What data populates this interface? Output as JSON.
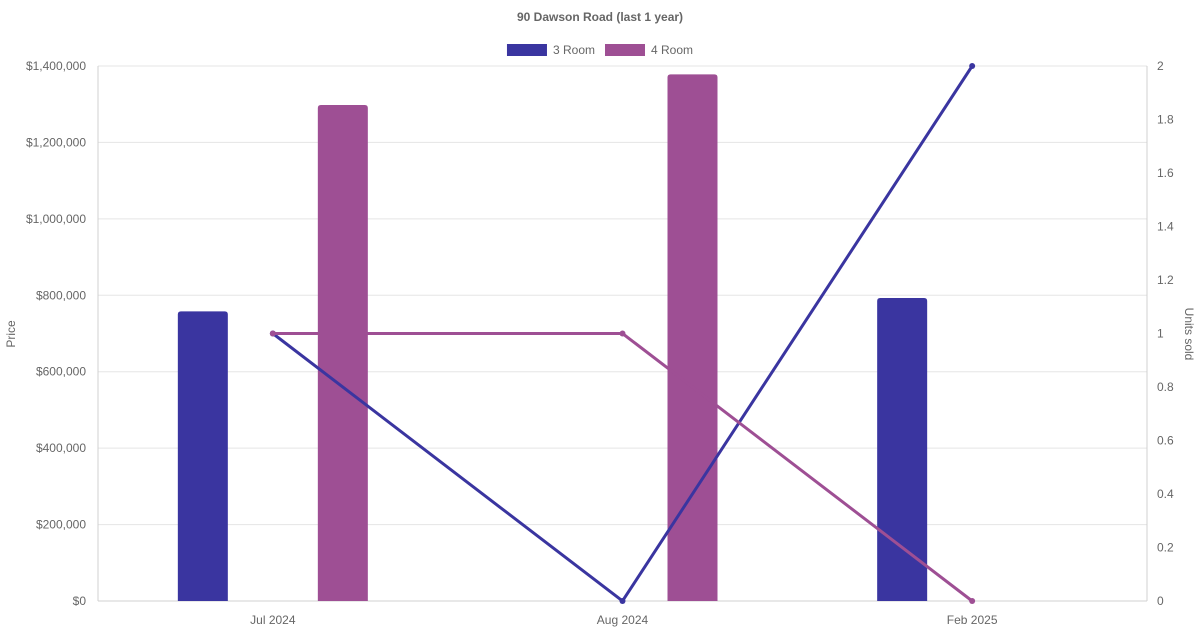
{
  "chart_data": {
    "type": "bar",
    "title": "90 Dawson Road (last 1 year)",
    "categories": [
      "Jul 2024",
      "Aug 2024",
      "Feb 2025"
    ],
    "y_left": {
      "label": "Price",
      "range": [
        0,
        1400000
      ],
      "ticks": [
        "$0",
        "$200,000",
        "$400,000",
        "$600,000",
        "$800,000",
        "$1,000,000",
        "$1,200,000",
        "$1,400,000"
      ]
    },
    "y_right": {
      "label": "Units sold",
      "range": [
        0,
        2
      ],
      "ticks": [
        "0",
        "0.2",
        "0.4",
        "0.6",
        "0.8",
        "1",
        "1.2",
        "1.4",
        "1.6",
        "1.8",
        "2"
      ]
    },
    "legend_position": "top",
    "grid": true,
    "series": [
      {
        "name": "3 Room",
        "color": "#3a35a0",
        "bar_values": [
          758000,
          null,
          793000
        ],
        "line_values": [
          1,
          0,
          2
        ]
      },
      {
        "name": "4 Room",
        "color": "#9e4f94",
        "bar_values": [
          1298000,
          1378000,
          null
        ],
        "line_values": [
          1,
          1,
          0
        ]
      }
    ]
  }
}
